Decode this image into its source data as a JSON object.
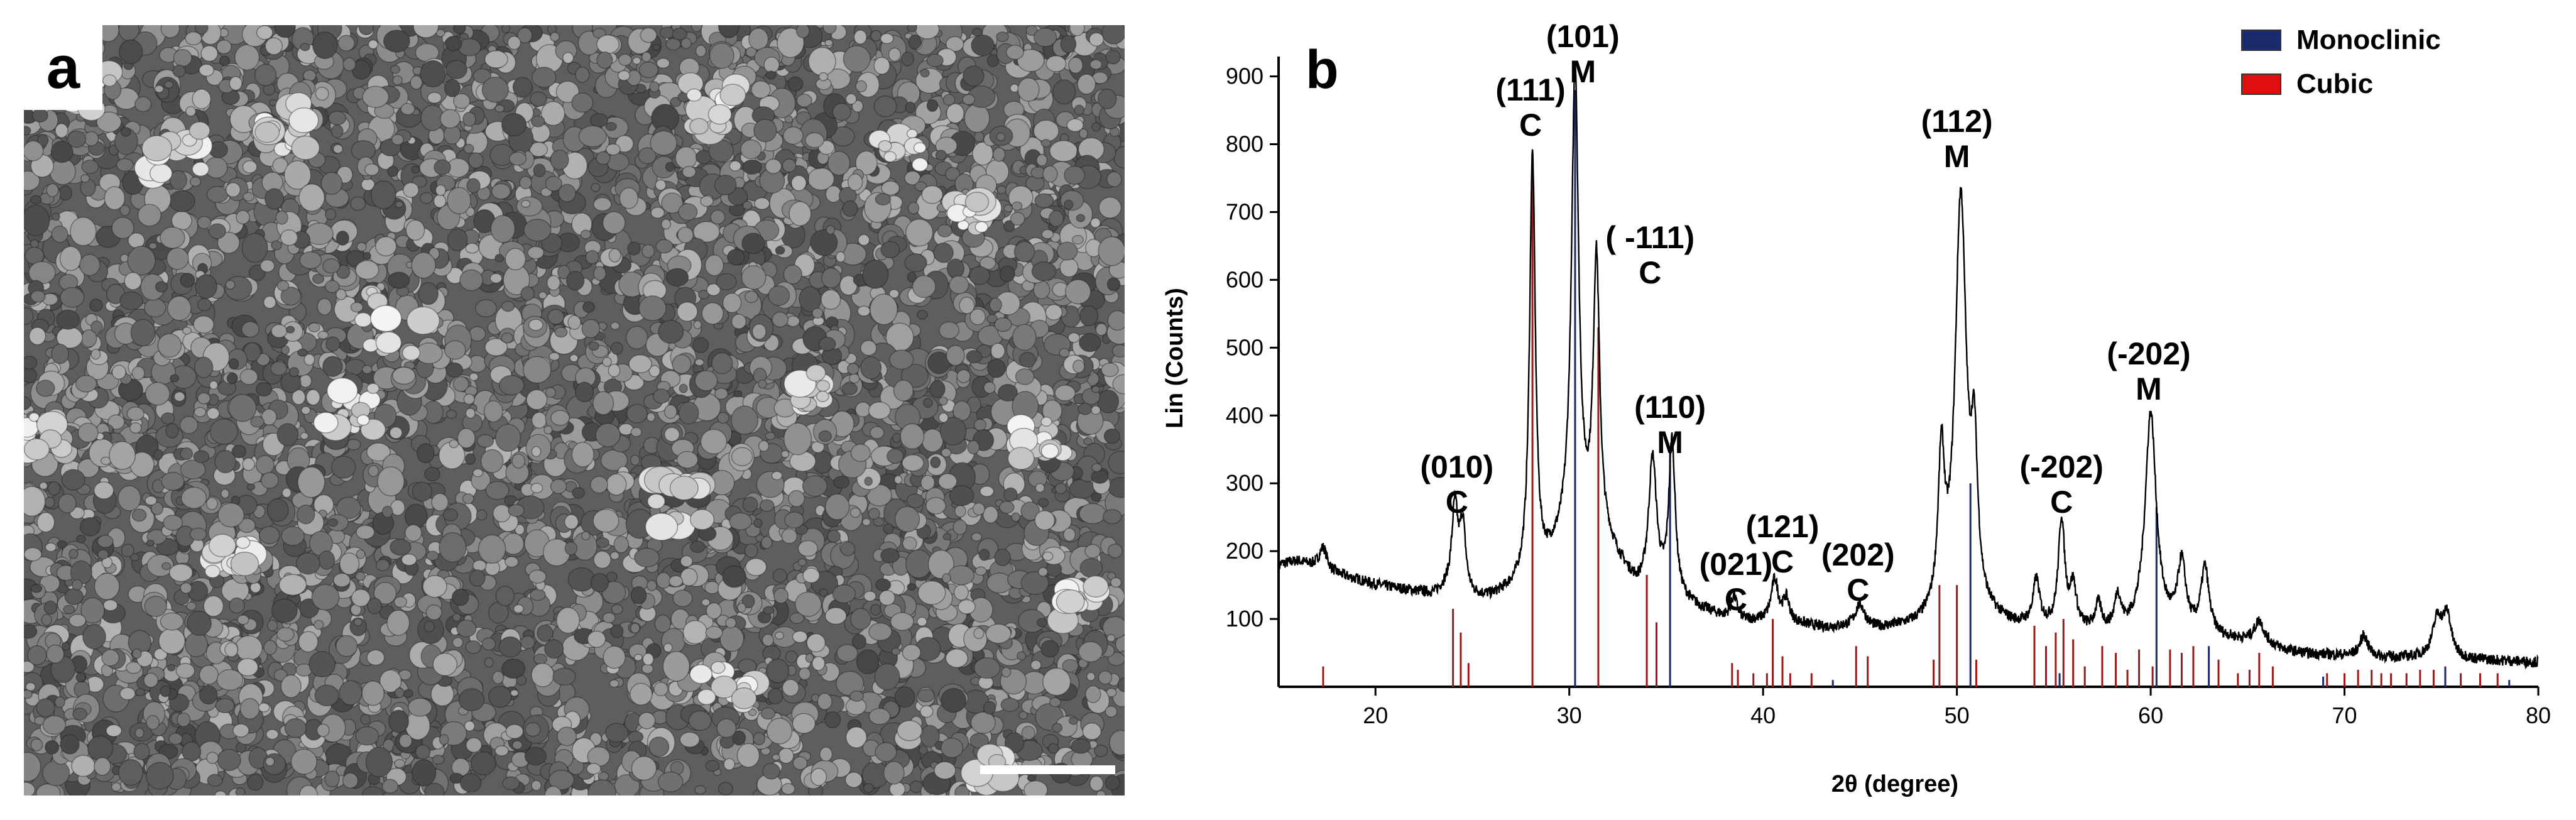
{
  "panels": {
    "a": {
      "label": "a"
    },
    "b": {
      "label": "b"
    }
  },
  "chart_data": {
    "type": "line",
    "title": "",
    "xlabel": "2θ (degree)",
    "ylabel": "Lin (Counts)",
    "xlim": [
      15,
      80
    ],
    "ylim": [
      0,
      920
    ],
    "x_ticks": [
      20,
      30,
      40,
      50,
      60,
      70,
      80
    ],
    "y_ticks": [
      100,
      200,
      300,
      400,
      500,
      600,
      700,
      800,
      900
    ],
    "grid": false,
    "legend": {
      "position": "top-right",
      "entries": [
        {
          "name": "Monoclinic",
          "color": "#1a2a6c"
        },
        {
          "name": "Cubic",
          "color": "#e01010"
        }
      ]
    },
    "pattern": {
      "baseline": [
        [
          15,
          180
        ],
        [
          16,
          185
        ],
        [
          17,
          175
        ],
        [
          18,
          165
        ],
        [
          19,
          158
        ],
        [
          20,
          150
        ],
        [
          21,
          145
        ],
        [
          22,
          140
        ],
        [
          23,
          135
        ],
        [
          24,
          150
        ],
        [
          25,
          130
        ],
        [
          26,
          130
        ],
        [
          27,
          140
        ],
        [
          28.5,
          160
        ],
        [
          30,
          220
        ],
        [
          32,
          200
        ],
        [
          33.5,
          140
        ],
        [
          36,
          120
        ],
        [
          38,
          100
        ],
        [
          39,
          95
        ],
        [
          40,
          95
        ],
        [
          42,
          90
        ],
        [
          43,
          85
        ],
        [
          44,
          85
        ],
        [
          46,
          82
        ],
        [
          48,
          85
        ],
        [
          49.5,
          95
        ],
        [
          52,
          90
        ],
        [
          53,
          85
        ],
        [
          54,
          85
        ],
        [
          56,
          80
        ],
        [
          58,
          75
        ],
        [
          61,
          80
        ],
        [
          63,
          72
        ],
        [
          65,
          65
        ],
        [
          66,
          60
        ],
        [
          67,
          52
        ],
        [
          68,
          48
        ],
        [
          70,
          45
        ],
        [
          72,
          42
        ],
        [
          74,
          42
        ],
        [
          76,
          40
        ],
        [
          78,
          38
        ],
        [
          80,
          36
        ]
      ],
      "peaks": [
        {
          "x": 17.3,
          "y": 205,
          "w": 0.25
        },
        {
          "x": 24.1,
          "y": 262,
          "w": 0.18
        },
        {
          "x": 24.5,
          "y": 235,
          "w": 0.18
        },
        {
          "x": 28.1,
          "y": 780,
          "w": 0.18
        },
        {
          "x": 30.3,
          "y": 905,
          "w": 0.22
        },
        {
          "x": 31.4,
          "y": 620,
          "w": 0.2
        },
        {
          "x": 34.3,
          "y": 330,
          "w": 0.25
        },
        {
          "x": 35.3,
          "y": 355,
          "w": 0.2
        },
        {
          "x": 38.5,
          "y": 130,
          "w": 0.2
        },
        {
          "x": 40.6,
          "y": 155,
          "w": 0.22
        },
        {
          "x": 41.2,
          "y": 125,
          "w": 0.2
        },
        {
          "x": 45.0,
          "y": 118,
          "w": 0.3
        },
        {
          "x": 49.2,
          "y": 310,
          "w": 0.2
        },
        {
          "x": 50.2,
          "y": 710,
          "w": 0.35
        },
        {
          "x": 50.9,
          "y": 300,
          "w": 0.2
        },
        {
          "x": 54.1,
          "y": 150,
          "w": 0.2
        },
        {
          "x": 55.4,
          "y": 240,
          "w": 0.2
        },
        {
          "x": 56.0,
          "y": 140,
          "w": 0.2
        },
        {
          "x": 57.3,
          "y": 115,
          "w": 0.2
        },
        {
          "x": 58.3,
          "y": 125,
          "w": 0.2
        },
        {
          "x": 60.0,
          "y": 400,
          "w": 0.35
        },
        {
          "x": 61.6,
          "y": 175,
          "w": 0.25
        },
        {
          "x": 62.8,
          "y": 170,
          "w": 0.25
        },
        {
          "x": 65.6,
          "y": 95,
          "w": 0.3
        },
        {
          "x": 71.0,
          "y": 75,
          "w": 0.25
        },
        {
          "x": 74.8,
          "y": 98,
          "w": 0.3
        },
        {
          "x": 75.3,
          "y": 100,
          "w": 0.25
        }
      ]
    },
    "reference_sticks": {
      "cubic": [
        [
          17.3,
          30
        ],
        [
          24.0,
          115
        ],
        [
          24.4,
          80
        ],
        [
          24.8,
          35
        ],
        [
          28.1,
          780
        ],
        [
          31.5,
          530
        ],
        [
          34.0,
          165
        ],
        [
          34.5,
          95
        ],
        [
          38.4,
          35
        ],
        [
          38.7,
          25
        ],
        [
          39.5,
          20
        ],
        [
          40.2,
          20
        ],
        [
          40.5,
          100
        ],
        [
          41.0,
          45
        ],
        [
          41.4,
          20
        ],
        [
          42.5,
          20
        ],
        [
          44.8,
          60
        ],
        [
          45.4,
          45
        ],
        [
          48.8,
          40
        ],
        [
          49.1,
          150
        ],
        [
          50.0,
          150
        ],
        [
          51.0,
          40
        ],
        [
          54.0,
          90
        ],
        [
          54.6,
          60
        ],
        [
          55.1,
          80
        ],
        [
          55.5,
          100
        ],
        [
          56.0,
          70
        ],
        [
          56.6,
          30
        ],
        [
          57.5,
          60
        ],
        [
          58.2,
          50
        ],
        [
          58.8,
          25
        ],
        [
          59.4,
          55
        ],
        [
          60.1,
          30
        ],
        [
          61.0,
          55
        ],
        [
          61.6,
          50
        ],
        [
          62.2,
          60
        ],
        [
          63.5,
          40
        ],
        [
          64.5,
          20
        ],
        [
          65.1,
          25
        ],
        [
          65.6,
          50
        ],
        [
          66.3,
          30
        ],
        [
          69.1,
          20
        ],
        [
          70.0,
          20
        ],
        [
          70.7,
          25
        ],
        [
          71.4,
          25
        ],
        [
          71.9,
          20
        ],
        [
          72.4,
          20
        ],
        [
          73.2,
          20
        ],
        [
          73.9,
          25
        ],
        [
          74.6,
          25
        ],
        [
          76.0,
          20
        ],
        [
          77.0,
          20
        ],
        [
          77.9,
          20
        ]
      ],
      "monoclinic": [
        [
          30.3,
          880
        ],
        [
          35.2,
          355
        ],
        [
          43.6,
          10
        ],
        [
          50.7,
          300
        ],
        [
          55.3,
          20
        ],
        [
          60.3,
          265
        ],
        [
          63.0,
          60
        ],
        [
          68.9,
          15
        ],
        [
          75.2,
          30
        ],
        [
          78.5,
          10
        ]
      ]
    },
    "annotations": [
      {
        "hkl": "(010)",
        "phase": "C",
        "x": 24.2
      },
      {
        "hkl": "(111)",
        "phase": "C",
        "x": 28.0
      },
      {
        "hkl": "(101)",
        "phase": "M",
        "x": 30.7
      },
      {
        "hkl": "( -111)",
        "phase": "C",
        "x": 31.9
      },
      {
        "hkl": "(110)",
        "phase": "M",
        "x": 35.2
      },
      {
        "hkl": "(021)",
        "phase": "C",
        "x": 38.6
      },
      {
        "hkl": "(121)",
        "phase": "C",
        "x": 41.0
      },
      {
        "hkl": "(202)",
        "phase": "C",
        "x": 44.9
      },
      {
        "hkl": "(112)",
        "phase": "M",
        "x": 50.0
      },
      {
        "hkl": "(-202)",
        "phase": "C",
        "x": 55.4
      },
      {
        "hkl": "(-202)",
        "phase": "M",
        "x": 59.9
      }
    ],
    "colors": {
      "pattern": "#000000",
      "cubic": "#9a1a1a",
      "monoclinic": "#1a2a6c",
      "cubic_legend": "#e01010"
    }
  }
}
